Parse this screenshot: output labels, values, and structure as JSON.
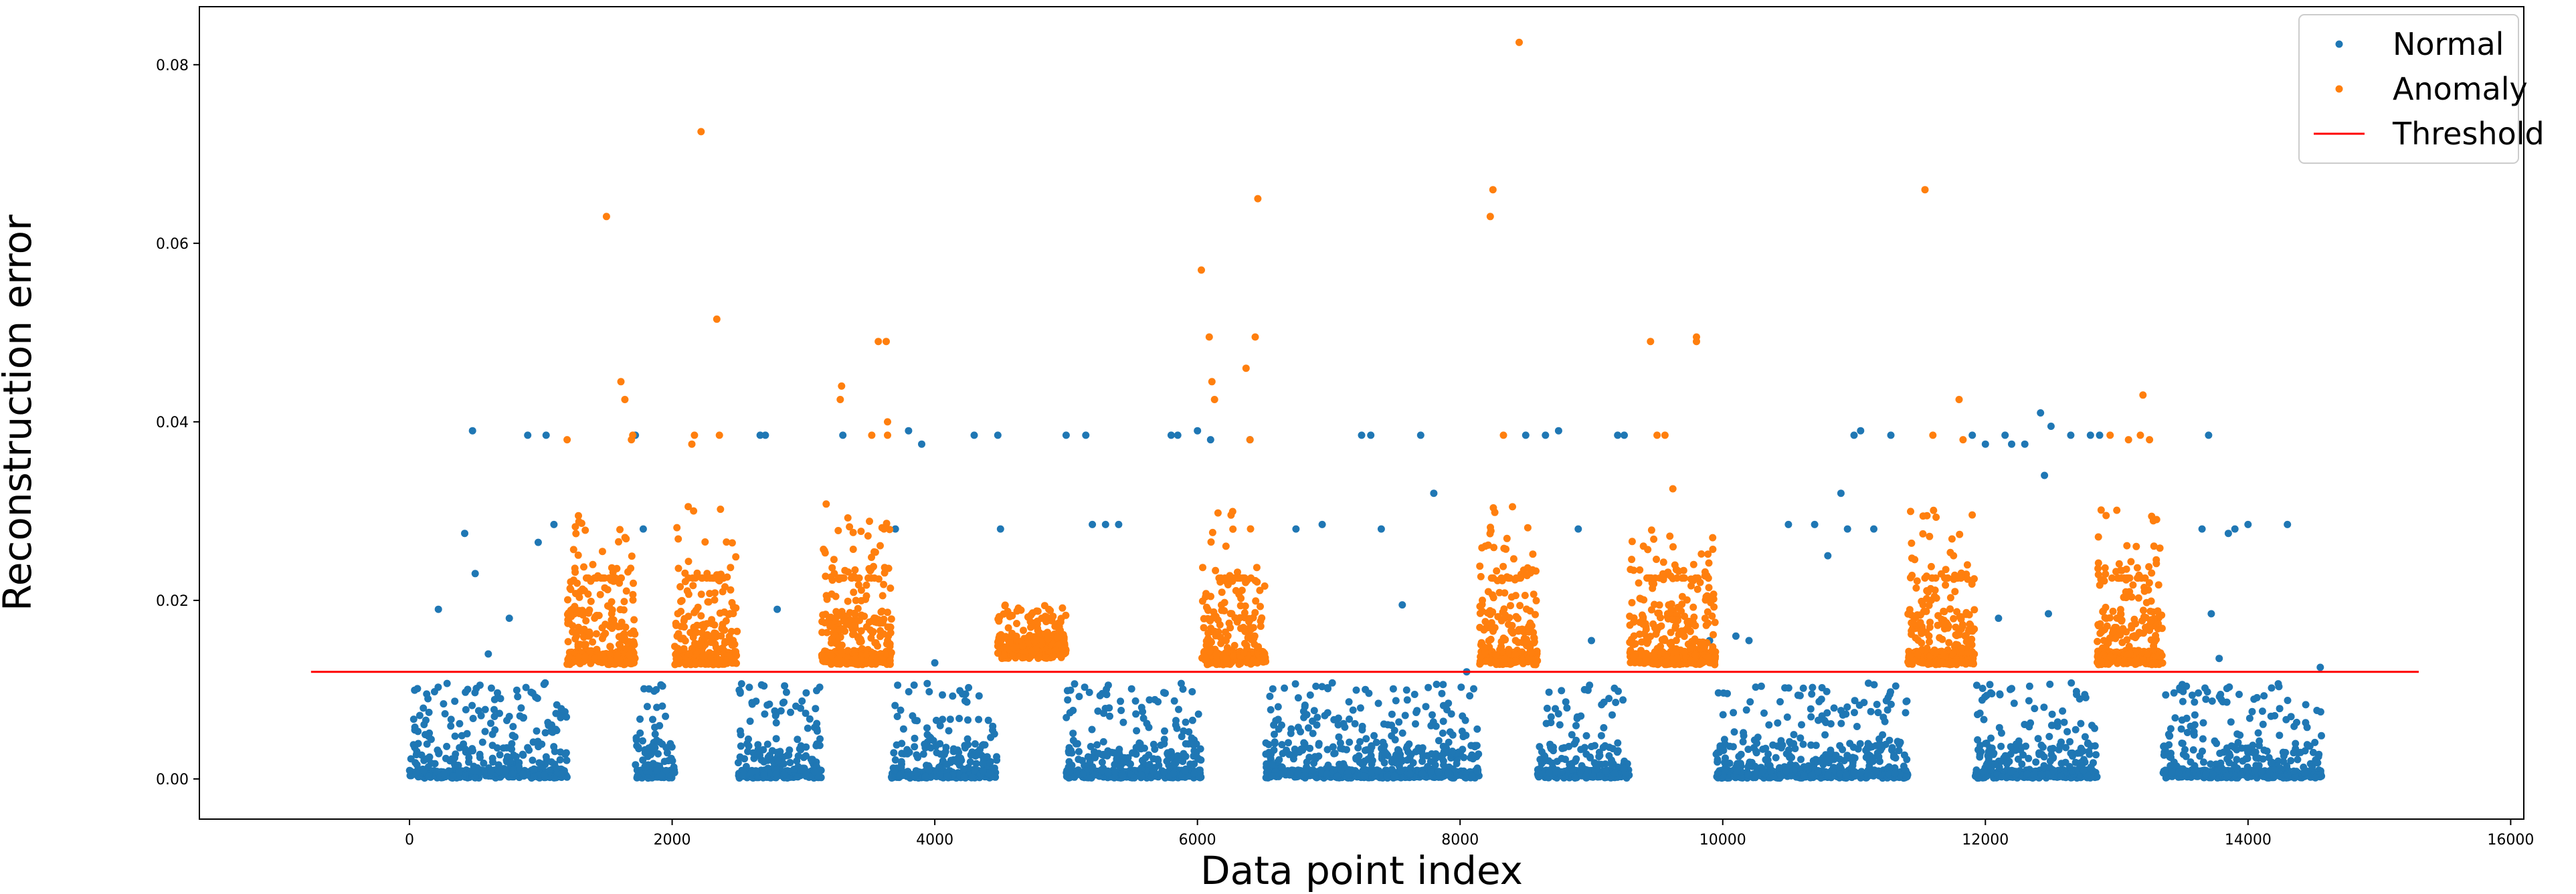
{
  "chart_data": {
    "type": "scatter",
    "title": "",
    "xlabel": "Data point index",
    "ylabel": "Reconstruction error",
    "xlim": [
      -1600,
      16100
    ],
    "ylim": [
      -0.0045,
      0.0865
    ],
    "xticks": [
      0,
      2000,
      4000,
      6000,
      8000,
      10000,
      12000,
      14000,
      16000
    ],
    "xtick_labels": [
      "0",
      "2000",
      "4000",
      "6000",
      "8000",
      "10000",
      "12000",
      "14000",
      "16000"
    ],
    "yticks": [
      0.0,
      0.02,
      0.04,
      0.06,
      0.08
    ],
    "ytick_labels": [
      "0.00",
      "0.02",
      "0.04",
      "0.06",
      "0.08"
    ],
    "grid": false,
    "legend_position": "top-right",
    "legend": [
      {
        "label": "Normal",
        "kind": "marker",
        "color": "#1f77b4"
      },
      {
        "label": "Anomaly",
        "kind": "marker",
        "color": "#ff7f0e"
      },
      {
        "label": "Threshold",
        "kind": "line",
        "color": "#ff0000"
      }
    ],
    "threshold": {
      "value": 0.012,
      "x_start": -750,
      "x_end": 15300,
      "color": "#ff0000"
    },
    "normal_segments": [
      [
        0,
        1200
      ],
      [
        1720,
        2020
      ],
      [
        2500,
        3140
      ],
      [
        3670,
        4480
      ],
      [
        5000,
        6030
      ],
      [
        6520,
        8150
      ],
      [
        8590,
        9290
      ],
      [
        9950,
        11410
      ],
      [
        11920,
        12850
      ],
      [
        13350,
        14560
      ]
    ],
    "anomaly_segments": [
      [
        1200,
        1720
      ],
      [
        2020,
        2500
      ],
      [
        3140,
        3670
      ],
      [
        4480,
        5000
      ],
      [
        6030,
        6520
      ],
      [
        8150,
        8590
      ],
      [
        9290,
        9950
      ],
      [
        11410,
        11920
      ],
      [
        12850,
        13350
      ]
    ],
    "normal_outliers": [
      [
        220,
        0.019
      ],
      [
        420,
        0.0275
      ],
      [
        480,
        0.039
      ],
      [
        500,
        0.023
      ],
      [
        600,
        0.014
      ],
      [
        760,
        0.018
      ],
      [
        900,
        0.0385
      ],
      [
        980,
        0.0265
      ],
      [
        1040,
        0.0385
      ],
      [
        1100,
        0.0285
      ],
      [
        1720,
        0.0385
      ],
      [
        1780,
        0.028
      ],
      [
        2670,
        0.0385
      ],
      [
        2710,
        0.0385
      ],
      [
        2800,
        0.019
      ],
      [
        3300,
        0.0385
      ],
      [
        3700,
        0.028
      ],
      [
        3800,
        0.039
      ],
      [
        3900,
        0.0375
      ],
      [
        4000,
        0.013
      ],
      [
        4300,
        0.0385
      ],
      [
        4480,
        0.0385
      ],
      [
        4500,
        0.028
      ],
      [
        5000,
        0.0385
      ],
      [
        5150,
        0.0385
      ],
      [
        5200,
        0.0285
      ],
      [
        5300,
        0.0285
      ],
      [
        5400,
        0.0285
      ],
      [
        5800,
        0.0385
      ],
      [
        5850,
        0.0385
      ],
      [
        6000,
        0.039
      ],
      [
        6100,
        0.038
      ],
      [
        6400,
        0.038
      ],
      [
        6750,
        0.028
      ],
      [
        6950,
        0.0285
      ],
      [
        7250,
        0.0385
      ],
      [
        7320,
        0.0385
      ],
      [
        7400,
        0.028
      ],
      [
        7560,
        0.0195
      ],
      [
        7700,
        0.0385
      ],
      [
        7800,
        0.032
      ],
      [
        8050,
        0.012
      ],
      [
        8500,
        0.0385
      ],
      [
        8650,
        0.0385
      ],
      [
        8750,
        0.039
      ],
      [
        8900,
        0.028
      ],
      [
        9000,
        0.0155
      ],
      [
        9200,
        0.0385
      ],
      [
        9250,
        0.0385
      ],
      [
        9900,
        0.0155
      ],
      [
        10100,
        0.016
      ],
      [
        10200,
        0.0155
      ],
      [
        10500,
        0.0285
      ],
      [
        10700,
        0.0285
      ],
      [
        10800,
        0.025
      ],
      [
        10900,
        0.032
      ],
      [
        10950,
        0.028
      ],
      [
        11000,
        0.0385
      ],
      [
        11050,
        0.039
      ],
      [
        11150,
        0.028
      ],
      [
        11280,
        0.0385
      ],
      [
        11900,
        0.0385
      ],
      [
        12000,
        0.0375
      ],
      [
        12100,
        0.018
      ],
      [
        12150,
        0.0385
      ],
      [
        12200,
        0.0375
      ],
      [
        12300,
        0.0375
      ],
      [
        12420,
        0.041
      ],
      [
        12450,
        0.034
      ],
      [
        12480,
        0.0185
      ],
      [
        12500,
        0.0395
      ],
      [
        12650,
        0.0385
      ],
      [
        12800,
        0.0385
      ],
      [
        12870,
        0.0385
      ],
      [
        13650,
        0.028
      ],
      [
        13700,
        0.0385
      ],
      [
        13720,
        0.0185
      ],
      [
        13780,
        0.0135
      ],
      [
        13850,
        0.0275
      ],
      [
        13900,
        0.028
      ],
      [
        14000,
        0.0285
      ],
      [
        14300,
        0.0285
      ],
      [
        14550,
        0.0125
      ]
    ],
    "anomaly_outliers": [
      [
        1200,
        0.038
      ],
      [
        1500,
        0.063
      ],
      [
        1610,
        0.0445
      ],
      [
        1640,
        0.0425
      ],
      [
        1690,
        0.038
      ],
      [
        1700,
        0.0385
      ],
      [
        2150,
        0.0375
      ],
      [
        2170,
        0.0385
      ],
      [
        2220,
        0.0725
      ],
      [
        2340,
        0.0515
      ],
      [
        2360,
        0.0385
      ],
      [
        3290,
        0.044
      ],
      [
        3280,
        0.0425
      ],
      [
        3520,
        0.0385
      ],
      [
        3570,
        0.049
      ],
      [
        3630,
        0.049
      ],
      [
        3640,
        0.0385
      ],
      [
        3640,
        0.04
      ],
      [
        6030,
        0.057
      ],
      [
        6090,
        0.0495
      ],
      [
        6110,
        0.0445
      ],
      [
        6130,
        0.0425
      ],
      [
        6370,
        0.046
      ],
      [
        6400,
        0.038
      ],
      [
        6440,
        0.0495
      ],
      [
        6460,
        0.065
      ],
      [
        8230,
        0.063
      ],
      [
        8250,
        0.066
      ],
      [
        8330,
        0.0385
      ],
      [
        8450,
        0.0825
      ],
      [
        9450,
        0.049
      ],
      [
        9500,
        0.0385
      ],
      [
        9560,
        0.0385
      ],
      [
        9620,
        0.0325
      ],
      [
        9800,
        0.049
      ],
      [
        9800,
        0.0495
      ],
      [
        11540,
        0.066
      ],
      [
        11600,
        0.0385
      ],
      [
        11800,
        0.0425
      ],
      [
        11830,
        0.038
      ],
      [
        12950,
        0.0385
      ],
      [
        13090,
        0.038
      ],
      [
        13180,
        0.0385
      ],
      [
        13200,
        0.043
      ],
      [
        13250,
        0.038
      ]
    ]
  }
}
